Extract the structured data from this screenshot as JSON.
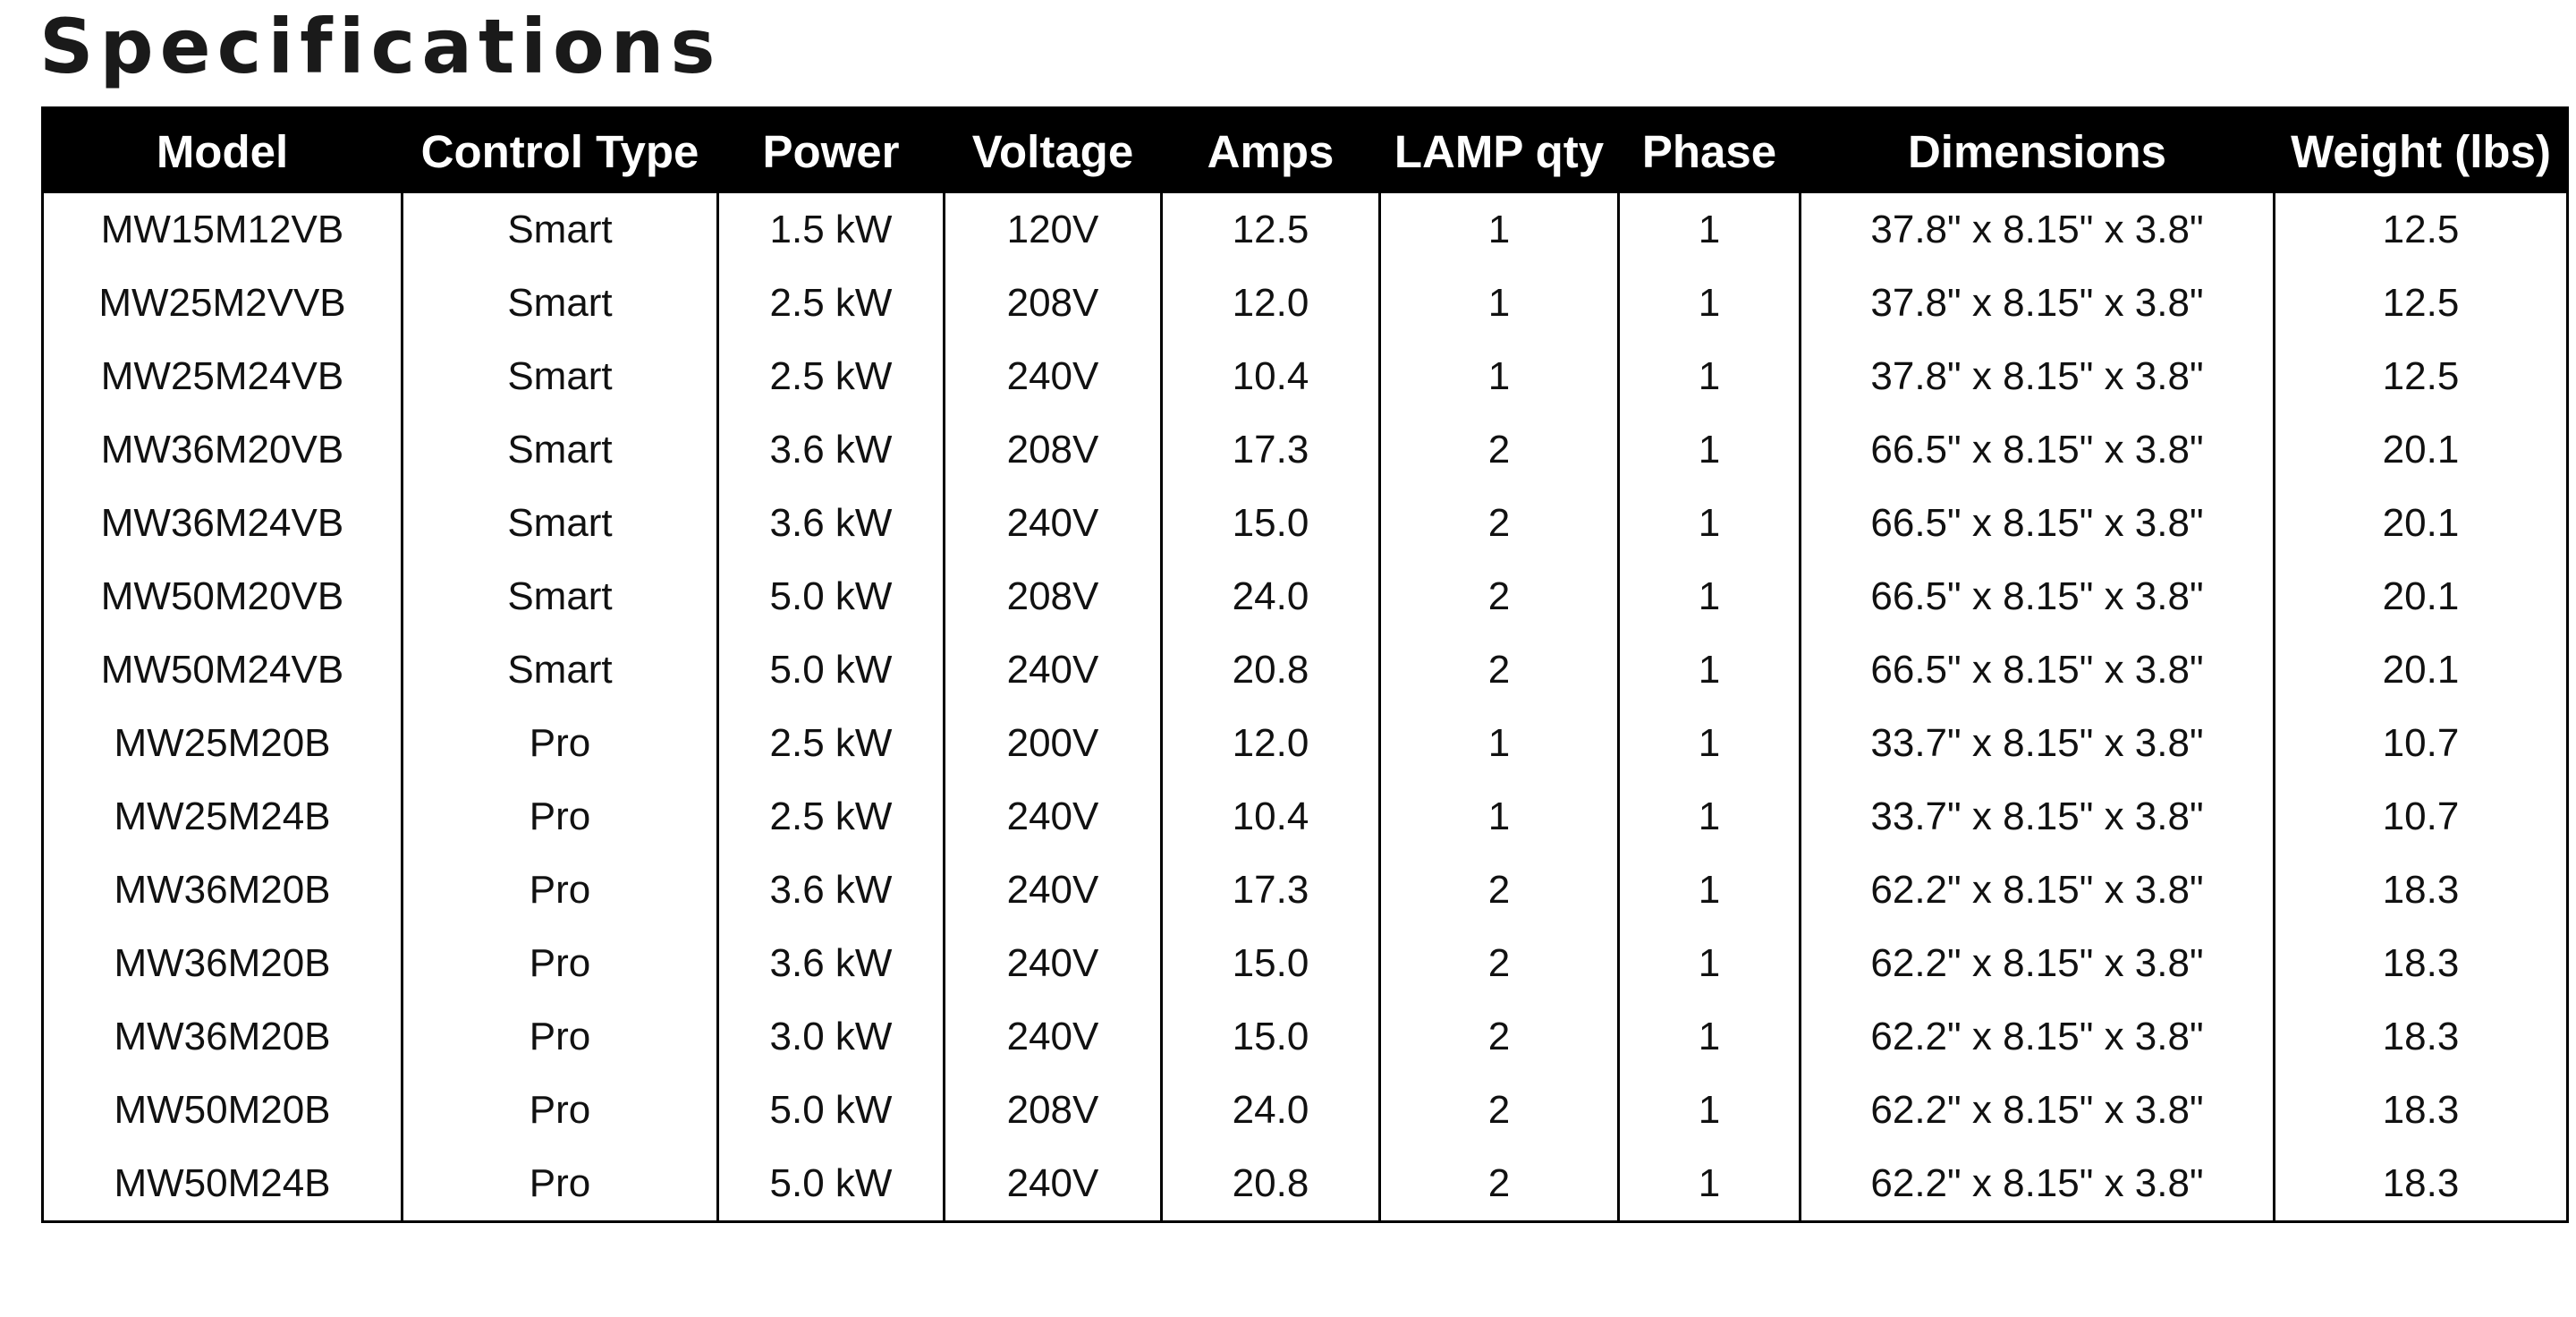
{
  "title": "Specifications",
  "table": {
    "header": [
      "Model",
      "Control Type",
      "Power",
      "Voltage",
      "Amps",
      "LAMP qty",
      "Phase",
      "Dimensions",
      "Weight (lbs)"
    ],
    "rows": [
      [
        "MW15M12VB",
        "Smart",
        "1.5 kW",
        "120V",
        "12.5",
        "1",
        "1",
        "37.8\" x 8.15\" x 3.8\"",
        "12.5"
      ],
      [
        "MW25M2VVB",
        "Smart",
        "2.5 kW",
        "208V",
        "12.0",
        "1",
        "1",
        "37.8\" x 8.15\" x 3.8\"",
        "12.5"
      ],
      [
        "MW25M24VB",
        "Smart",
        "2.5 kW",
        "240V",
        "10.4",
        "1",
        "1",
        "37.8\" x 8.15\" x 3.8\"",
        "12.5"
      ],
      [
        "MW36M20VB",
        "Smart",
        "3.6 kW",
        "208V",
        "17.3",
        "2",
        "1",
        "66.5\" x 8.15\" x 3.8\"",
        "20.1"
      ],
      [
        "MW36M24VB",
        "Smart",
        "3.6 kW",
        "240V",
        "15.0",
        "2",
        "1",
        "66.5\" x 8.15\" x 3.8\"",
        "20.1"
      ],
      [
        "MW50M20VB",
        "Smart",
        "5.0 kW",
        "208V",
        "24.0",
        "2",
        "1",
        "66.5\" x 8.15\" x 3.8\"",
        "20.1"
      ],
      [
        "MW50M24VB",
        "Smart",
        "5.0 kW",
        "240V",
        "20.8",
        "2",
        "1",
        "66.5\" x 8.15\" x 3.8\"",
        "20.1"
      ],
      [
        "MW25M20B",
        "Pro",
        "2.5 kW",
        "200V",
        "12.0",
        "1",
        "1",
        "33.7\" x 8.15\" x 3.8\"",
        "10.7"
      ],
      [
        "MW25M24B",
        "Pro",
        "2.5 kW",
        "240V",
        "10.4",
        "1",
        "1",
        "33.7\" x 8.15\" x 3.8\"",
        "10.7"
      ],
      [
        "MW36M20B",
        "Pro",
        "3.6 kW",
        "240V",
        "17.3",
        "2",
        "1",
        "62.2\" x 8.15\" x 3.8\"",
        "18.3"
      ],
      [
        "MW36M20B",
        "Pro",
        "3.6 kW",
        "240V",
        "15.0",
        "2",
        "1",
        "62.2\" x 8.15\" x 3.8\"",
        "18.3"
      ],
      [
        "MW36M20B",
        "Pro",
        "3.0 kW",
        "240V",
        "15.0",
        "2",
        "1",
        "62.2\" x 8.15\" x 3.8\"",
        "18.3"
      ],
      [
        "MW50M20B",
        "Pro",
        "5.0 kW",
        "208V",
        "24.0",
        "2",
        "1",
        "62.2\" x 8.15\" x 3.8\"",
        "18.3"
      ],
      [
        "MW50M24B",
        "Pro",
        "5.0 kW",
        "240V",
        "20.8",
        "2",
        "1",
        "62.2\" x 8.15\" x 3.8\"",
        "18.3"
      ]
    ]
  }
}
